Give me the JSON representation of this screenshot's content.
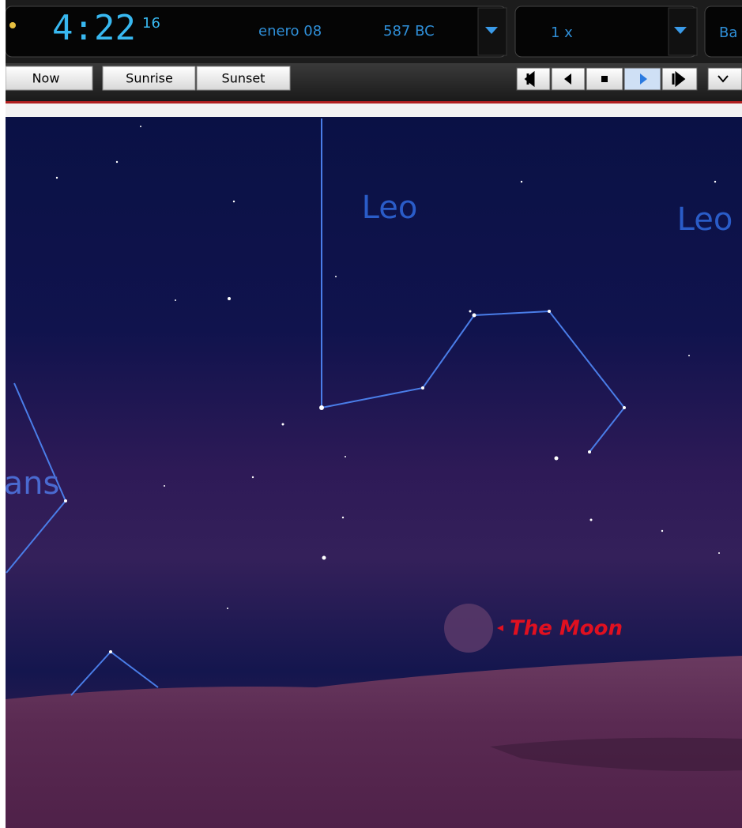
{
  "toolbar": {
    "time": "4:22",
    "seconds": "16",
    "date": "enero 08",
    "year": "587 BC",
    "speed": "1 x",
    "location": "Ba",
    "buttons": [
      "Now",
      "Sunrise",
      "Sunset"
    ]
  },
  "sky": {
    "constellation_labels": [
      "Leo",
      "Leo",
      "ans"
    ],
    "moon_label": "The Moon"
  }
}
